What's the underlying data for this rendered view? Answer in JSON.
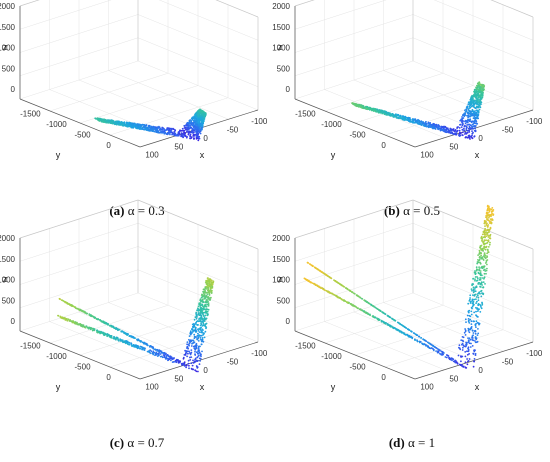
{
  "chart_data": [
    {
      "type": "scatter",
      "panel_label": "(a)",
      "alpha_label": "α = 0.3",
      "xlabel": "x",
      "ylabel": "y",
      "zlabel": "z",
      "x_ticks": [
        "100",
        "50",
        "0",
        "-50",
        "-100"
      ],
      "y_ticks": [
        "-1500",
        "-1000",
        "-500",
        "0"
      ],
      "z_ticks": [
        "0",
        "500",
        "1000",
        "1500",
        "2000"
      ],
      "xlim": [
        -100,
        100
      ],
      "ylim": [
        -1800,
        200
      ],
      "zlim": [
        -300,
        2000
      ],
      "height_scale": 0.3,
      "colormap": [
        "#3d1fe0",
        "#2f6cf0",
        "#1ca7e0",
        "#38c59a",
        "#9bd24e",
        "#f2c431"
      ]
    },
    {
      "type": "scatter",
      "panel_label": "(b)",
      "alpha_label": "α = 0.5",
      "xlabel": "x",
      "ylabel": "y",
      "zlabel": "z",
      "x_ticks": [
        "100",
        "50",
        "0",
        "-50",
        "-100"
      ],
      "y_ticks": [
        "-1500",
        "-1000",
        "-500",
        "0"
      ],
      "z_ticks": [
        "0",
        "500",
        "1000",
        "1500",
        "2000"
      ],
      "xlim": [
        -100,
        100
      ],
      "ylim": [
        -1800,
        200
      ],
      "zlim": [
        -300,
        2000
      ],
      "height_scale": 0.5,
      "colormap": [
        "#3d1fe0",
        "#2f6cf0",
        "#1ca7e0",
        "#38c59a",
        "#9bd24e",
        "#f2c431"
      ]
    },
    {
      "type": "scatter",
      "panel_label": "(c)",
      "alpha_label": "α = 0.7",
      "xlabel": "x",
      "ylabel": "y",
      "zlabel": "z",
      "x_ticks": [
        "100",
        "50",
        "0",
        "-50",
        "-100"
      ],
      "y_ticks": [
        "-1500",
        "-1000",
        "-500",
        "0"
      ],
      "z_ticks": [
        "0",
        "500",
        "1000",
        "1500",
        "2000"
      ],
      "xlim": [
        -100,
        100
      ],
      "ylim": [
        -1800,
        200
      ],
      "zlim": [
        -300,
        2000
      ],
      "height_scale": 0.7,
      "colormap": [
        "#3d1fe0",
        "#2f6cf0",
        "#1ca7e0",
        "#38c59a",
        "#9bd24e",
        "#f2c431"
      ]
    },
    {
      "type": "scatter",
      "panel_label": "(d)",
      "alpha_label": "α = 1",
      "xlabel": "x",
      "ylabel": "y",
      "zlabel": "z",
      "x_ticks": [
        "100",
        "50",
        "0",
        "-50",
        "-100"
      ],
      "y_ticks": [
        "-1500",
        "-1000",
        "-500",
        "0"
      ],
      "z_ticks": [
        "0",
        "500",
        "1000",
        "1500",
        "2000"
      ],
      "xlim": [
        -100,
        100
      ],
      "ylim": [
        -1800,
        200
      ],
      "zlim": [
        -300,
        2000
      ],
      "height_scale": 1.0,
      "colormap": [
        "#3d1fe0",
        "#2f6cf0",
        "#1ca7e0",
        "#38c59a",
        "#9bd24e",
        "#f2c431"
      ]
    }
  ]
}
